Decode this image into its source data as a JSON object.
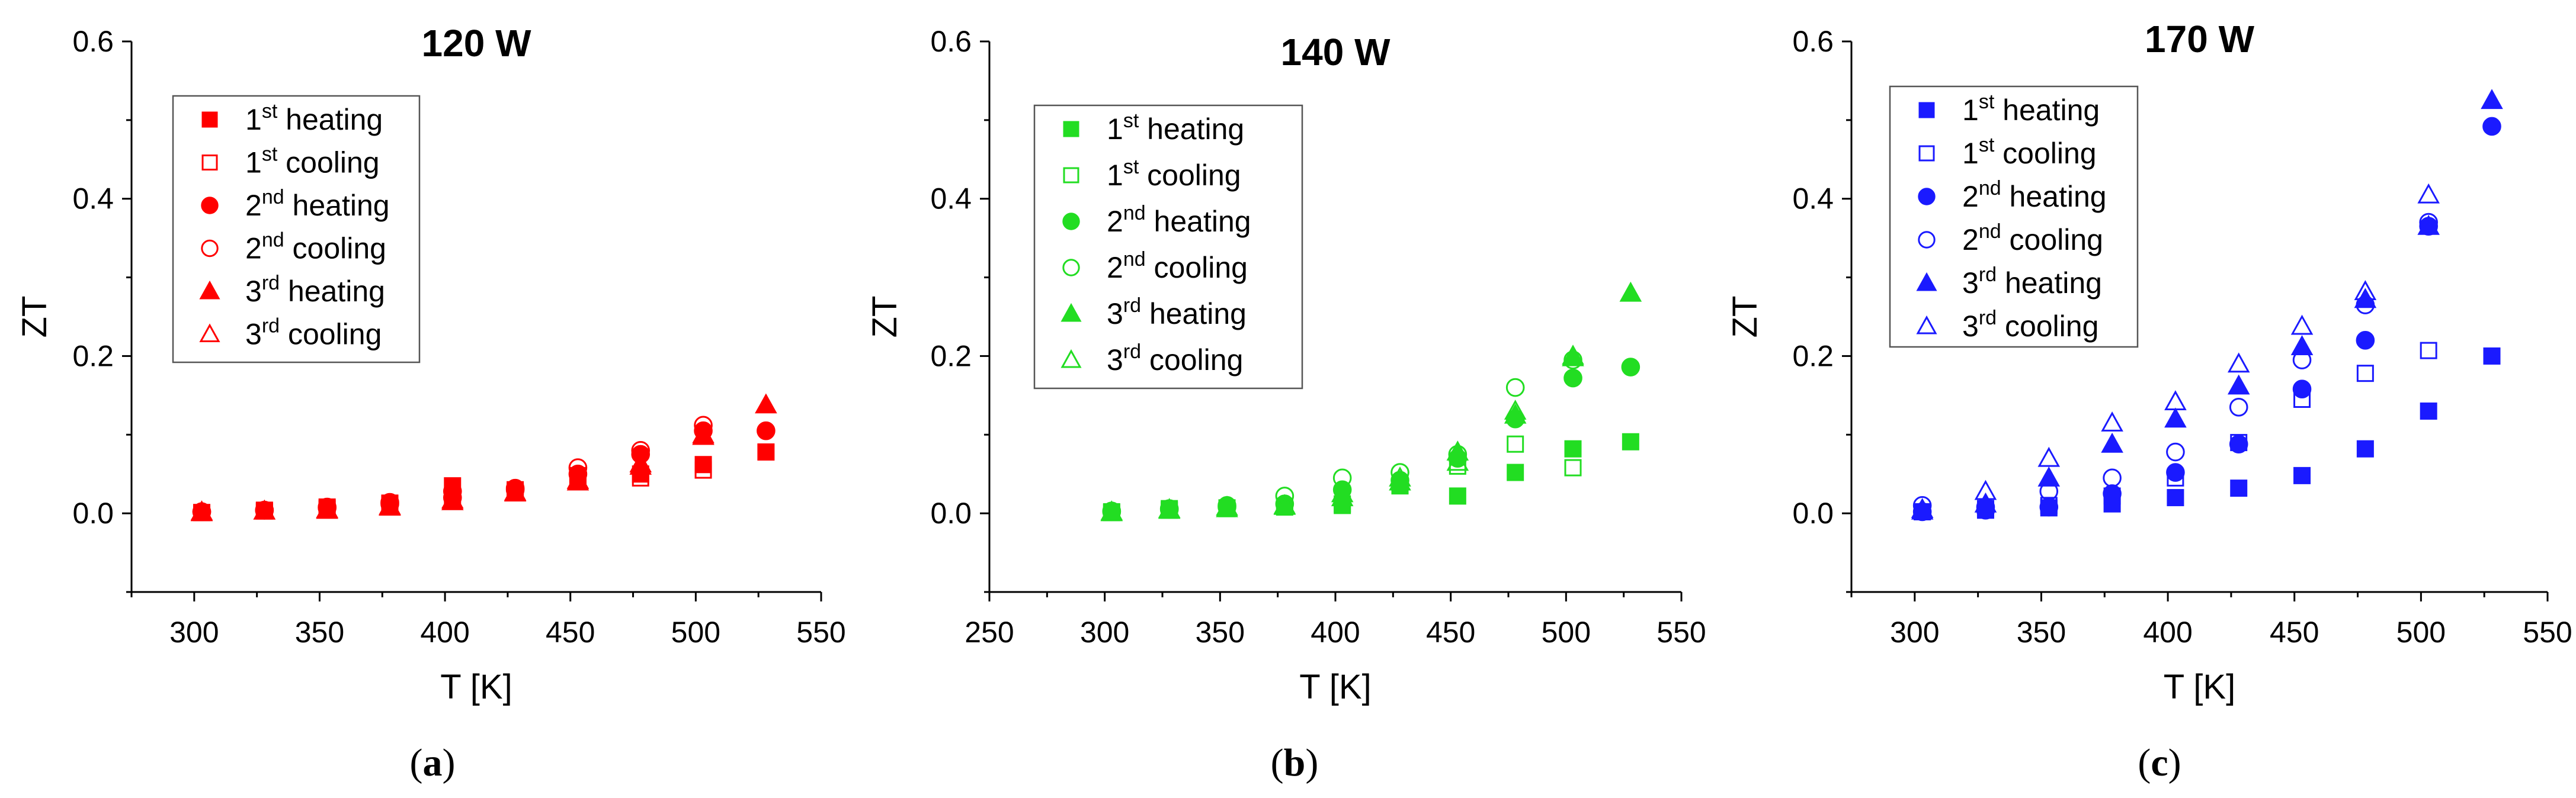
{
  "figure": {
    "panel_labels": [
      "(a)",
      "(b)",
      "(c)"
    ]
  },
  "chart_data": [
    {
      "type": "scatter",
      "title": "120 W",
      "xlabel": "T [K]",
      "ylabel": "ZT",
      "xlim": [
        275,
        550
      ],
      "ylim": [
        -0.1,
        0.6
      ],
      "xticks": [
        300,
        350,
        400,
        450,
        500,
        550
      ],
      "yticks": [
        0.0,
        0.2,
        0.4,
        0.6
      ],
      "color": "#ff0000",
      "legend_position": "top-left",
      "series": [
        {
          "name": "1st heating",
          "ord": "1",
          "sup": "st",
          "label": "heating",
          "marker": "square",
          "filled": true,
          "x": [
            303,
            328,
            353,
            378,
            403,
            428,
            453,
            478,
            503,
            528
          ],
          "y": [
            0.001,
            0.004,
            0.008,
            0.013,
            0.035,
            0.03,
            0.048,
            0.05,
            0.062,
            0.078
          ]
        },
        {
          "name": "1st cooling",
          "ord": "1",
          "sup": "st",
          "label": "cooling",
          "marker": "square",
          "filled": false,
          "x": [
            303,
            328,
            353,
            378,
            403,
            428,
            453,
            478,
            503
          ],
          "y": [
            0.001,
            0.003,
            0.006,
            0.012,
            0.02,
            0.027,
            0.04,
            0.045,
            0.055
          ]
        },
        {
          "name": "2nd heating",
          "ord": "2",
          "sup": "nd",
          "label": "heating",
          "marker": "circle",
          "filled": true,
          "x": [
            303,
            328,
            353,
            378,
            403,
            428,
            453,
            478,
            503,
            528
          ],
          "y": [
            0.002,
            0.004,
            0.007,
            0.012,
            0.02,
            0.03,
            0.05,
            0.075,
            0.105,
            0.105
          ]
        },
        {
          "name": "2nd cooling",
          "ord": "2",
          "sup": "nd",
          "label": "cooling",
          "marker": "circle",
          "filled": false,
          "x": [
            303,
            328,
            353,
            378,
            403,
            428,
            453,
            478,
            503
          ],
          "y": [
            0.002,
            0.004,
            0.008,
            0.014,
            0.028,
            0.032,
            0.058,
            0.08,
            0.112
          ]
        },
        {
          "name": "3rd heating",
          "ord": "3",
          "sup": "rd",
          "label": "heating",
          "marker": "triangle",
          "filled": true,
          "x": [
            303,
            328,
            353,
            378,
            403,
            428,
            453,
            478,
            503,
            528
          ],
          "y": [
            0.002,
            0.003,
            0.005,
            0.009,
            0.017,
            0.027,
            0.042,
            0.06,
            0.098,
            0.138
          ]
        },
        {
          "name": "3rd cooling",
          "ord": "3",
          "sup": "rd",
          "label": "cooling",
          "marker": "triangle",
          "filled": false,
          "x": [
            303,
            328,
            353,
            378,
            403,
            428,
            453,
            478,
            503
          ],
          "y": [
            0.001,
            0.003,
            0.004,
            0.008,
            0.015,
            0.026,
            0.04,
            0.063,
            0.1
          ]
        }
      ]
    },
    {
      "type": "scatter",
      "title": "140 W",
      "xlabel": "T [K]",
      "ylabel": "ZT",
      "xlim": [
        250,
        550
      ],
      "ylim": [
        -0.1,
        0.6
      ],
      "xticks": [
        250,
        300,
        350,
        400,
        450,
        500,
        550
      ],
      "yticks": [
        0.0,
        0.2,
        0.4,
        0.6
      ],
      "color": "#22dd22",
      "legend_position": "top-left",
      "series": [
        {
          "name": "1st heating",
          "ord": "1",
          "sup": "st",
          "label": "heating",
          "marker": "square",
          "filled": true,
          "x": [
            303,
            328,
            353,
            378,
            403,
            428,
            453,
            478,
            503,
            528
          ],
          "y": [
            0.002,
            0.006,
            0.007,
            0.009,
            0.01,
            0.035,
            0.022,
            0.052,
            0.082,
            0.091
          ]
        },
        {
          "name": "1st cooling",
          "ord": "1",
          "sup": "st",
          "label": "cooling",
          "marker": "square",
          "filled": false,
          "x": [
            303,
            328,
            353,
            378,
            403,
            428,
            453,
            478,
            503
          ],
          "y": [
            0.001,
            0.004,
            0.006,
            0.008,
            0.012,
            0.035,
            0.06,
            0.088,
            0.058
          ]
        },
        {
          "name": "2nd heating",
          "ord": "2",
          "sup": "nd",
          "label": "heating",
          "marker": "circle",
          "filled": true,
          "x": [
            303,
            328,
            353,
            378,
            403,
            428,
            453,
            478,
            503,
            528
          ],
          "y": [
            0.003,
            0.005,
            0.008,
            0.012,
            0.03,
            0.042,
            0.07,
            0.12,
            0.172,
            0.186
          ]
        },
        {
          "name": "2nd cooling",
          "ord": "2",
          "sup": "nd",
          "label": "cooling",
          "marker": "circle",
          "filled": false,
          "x": [
            303,
            328,
            353,
            378,
            403,
            428,
            453,
            478,
            503
          ],
          "y": [
            0.002,
            0.006,
            0.01,
            0.022,
            0.045,
            0.052,
            0.075,
            0.16,
            0.195
          ]
        },
        {
          "name": "3rd heating",
          "ord": "3",
          "sup": "rd",
          "label": "heating",
          "marker": "triangle",
          "filled": true,
          "x": [
            303,
            328,
            353,
            378,
            403,
            428,
            453,
            478,
            503,
            528
          ],
          "y": [
            0.002,
            0.005,
            0.008,
            0.01,
            0.025,
            0.04,
            0.078,
            0.125,
            0.198,
            0.28
          ]
        },
        {
          "name": "3rd cooling",
          "ord": "3",
          "sup": "rd",
          "label": "cooling",
          "marker": "triangle",
          "filled": false,
          "x": [
            303,
            328,
            353,
            378,
            403,
            428,
            453,
            478,
            503
          ],
          "y": [
            0.001,
            0.004,
            0.006,
            0.009,
            0.02,
            0.045,
            0.065,
            0.13,
            0.2
          ]
        }
      ]
    },
    {
      "type": "scatter",
      "title": "170 W",
      "xlabel": "T [K]",
      "ylabel": "ZT",
      "xlim": [
        275,
        550
      ],
      "ylim": [
        -0.1,
        0.6
      ],
      "xticks": [
        300,
        350,
        400,
        450,
        500,
        550
      ],
      "yticks": [
        0.0,
        0.2,
        0.4,
        0.6
      ],
      "color": "#1a1aff",
      "legend_position": "top-left",
      "series": [
        {
          "name": "1st heating",
          "ord": "1",
          "sup": "st",
          "label": "heating",
          "marker": "square",
          "filled": true,
          "x": [
            303,
            328,
            353,
            378,
            403,
            428,
            453,
            478,
            503,
            528
          ],
          "y": [
            0.002,
            0.004,
            0.007,
            0.012,
            0.02,
            0.032,
            0.048,
            0.082,
            0.13,
            0.2
          ]
        },
        {
          "name": "1st cooling",
          "ord": "1",
          "sup": "st",
          "label": "cooling",
          "marker": "square",
          "filled": false,
          "x": [
            303,
            328,
            353,
            378,
            403,
            428,
            453,
            478,
            503
          ],
          "y": [
            0.002,
            0.006,
            0.01,
            0.022,
            0.045,
            0.09,
            0.145,
            0.178,
            0.207
          ]
        },
        {
          "name": "2nd heating",
          "ord": "2",
          "sup": "nd",
          "label": "heating",
          "marker": "circle",
          "filled": true,
          "x": [
            303,
            328,
            353,
            378,
            403,
            428,
            453,
            478,
            503,
            528
          ],
          "y": [
            0.002,
            0.004,
            0.008,
            0.025,
            0.052,
            0.088,
            0.158,
            0.22,
            0.365,
            0.492
          ]
        },
        {
          "name": "2nd cooling",
          "ord": "2",
          "sup": "nd",
          "label": "cooling",
          "marker": "circle",
          "filled": false,
          "x": [
            303,
            328,
            353,
            378,
            403,
            428,
            453,
            478,
            503
          ],
          "y": [
            0.01,
            0.008,
            0.028,
            0.045,
            0.078,
            0.135,
            0.195,
            0.265,
            0.37
          ]
        },
        {
          "name": "3rd heating",
          "ord": "3",
          "sup": "rd",
          "label": "heating",
          "marker": "triangle",
          "filled": true,
          "x": [
            303,
            328,
            353,
            378,
            403,
            428,
            453,
            478,
            503,
            528
          ],
          "y": [
            0.003,
            0.012,
            0.045,
            0.088,
            0.12,
            0.162,
            0.212,
            0.272,
            0.365,
            0.525
          ]
        },
        {
          "name": "3rd cooling",
          "ord": "3",
          "sup": "rd",
          "label": "cooling",
          "marker": "triangle",
          "filled": false,
          "x": [
            303,
            328,
            353,
            378,
            403,
            428,
            453,
            478,
            503
          ],
          "y": [
            0.005,
            0.028,
            0.07,
            0.115,
            0.142,
            0.19,
            0.238,
            0.282,
            0.405
          ]
        }
      ]
    }
  ]
}
